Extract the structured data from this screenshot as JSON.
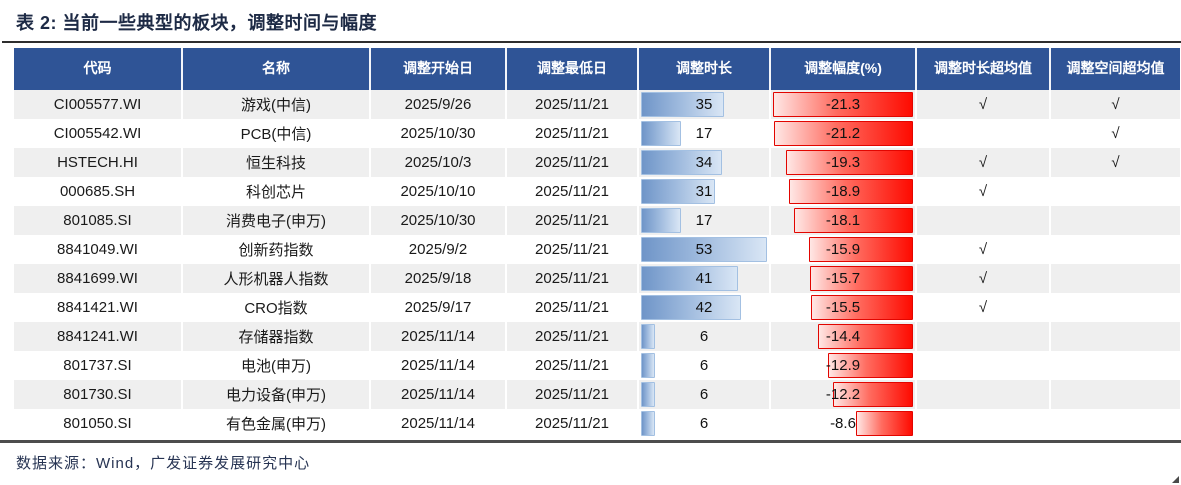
{
  "title": {
    "text": "表 2:  当前一些典型的板块，调整时间与幅度"
  },
  "source": {
    "text": "数据来源：Wind，广发证券发展研究中心"
  },
  "table": {
    "columns": [
      {
        "key": "code",
        "label": "代码"
      },
      {
        "key": "name",
        "label": "名称"
      },
      {
        "key": "start",
        "label": "调整开始日"
      },
      {
        "key": "low",
        "label": "调整最低日"
      },
      {
        "key": "duration",
        "label": "调整时长"
      },
      {
        "key": "drawdown",
        "label": "调整幅度(%)"
      },
      {
        "key": "dur_over",
        "label": "调整时长超均值"
      },
      {
        "key": "space_over",
        "label": "调整空间超均值"
      }
    ],
    "check_glyph": "√",
    "rows": [
      {
        "code": "CI005577.WI",
        "name": "游戏(中信)",
        "start": "2025/9/26",
        "low": "2025/11/21",
        "duration": 35,
        "drawdown": -21.3,
        "duration_over_avg": true,
        "space_over_avg": true
      },
      {
        "code": "CI005542.WI",
        "name": "PCB(中信)",
        "start": "2025/10/30",
        "low": "2025/11/21",
        "duration": 17,
        "drawdown": -21.2,
        "duration_over_avg": false,
        "space_over_avg": true
      },
      {
        "code": "HSTECH.HI",
        "name": "恒生科技",
        "start": "2025/10/3",
        "low": "2025/11/21",
        "duration": 34,
        "drawdown": -19.3,
        "duration_over_avg": true,
        "space_over_avg": true
      },
      {
        "code": "000685.SH",
        "name": "科创芯片",
        "start": "2025/10/10",
        "low": "2025/11/21",
        "duration": 31,
        "drawdown": -18.9,
        "duration_over_avg": true,
        "space_over_avg": false
      },
      {
        "code": "801085.SI",
        "name": "消费电子(申万)",
        "start": "2025/10/30",
        "low": "2025/11/21",
        "duration": 17,
        "drawdown": -18.1,
        "duration_over_avg": false,
        "space_over_avg": false
      },
      {
        "code": "8841049.WI",
        "name": "创新药指数",
        "start": "2025/9/2",
        "low": "2025/11/21",
        "duration": 53,
        "drawdown": -15.9,
        "duration_over_avg": true,
        "space_over_avg": false
      },
      {
        "code": "8841699.WI",
        "name": "人形机器人指数",
        "start": "2025/9/18",
        "low": "2025/11/21",
        "duration": 41,
        "drawdown": -15.7,
        "duration_over_avg": true,
        "space_over_avg": false
      },
      {
        "code": "8841421.WI",
        "name": "CRO指数",
        "start": "2025/9/17",
        "low": "2025/11/21",
        "duration": 42,
        "drawdown": -15.5,
        "duration_over_avg": true,
        "space_over_avg": false
      },
      {
        "code": "8841241.WI",
        "name": "存储器指数",
        "start": "2025/11/14",
        "low": "2025/11/21",
        "duration": 6,
        "drawdown": -14.4,
        "duration_over_avg": false,
        "space_over_avg": false
      },
      {
        "code": "801737.SI",
        "name": "电池(申万)",
        "start": "2025/11/14",
        "low": "2025/11/21",
        "duration": 6,
        "drawdown": -12.9,
        "duration_over_avg": false,
        "space_over_avg": false
      },
      {
        "code": "801730.SI",
        "name": "电力设备(申万)",
        "start": "2025/11/14",
        "low": "2025/11/21",
        "duration": 6,
        "drawdown": -12.2,
        "duration_over_avg": false,
        "space_over_avg": false
      },
      {
        "code": "801050.SI",
        "name": "有色金属(申万)",
        "start": "2025/11/14",
        "low": "2025/11/21",
        "duration": 6,
        "drawdown": -8.6,
        "duration_over_avg": false,
        "space_over_avg": false
      }
    ]
  },
  "colors": {
    "header_bg": "#2f5496",
    "stripe_bg": "#efefef",
    "blue_bar_border": "#a3c0e2",
    "blue_bar_start": "#6f95c8",
    "blue_bar_end": "#d9e6f5",
    "red_bar_border": "#e20500",
    "red_bar_start": "#ffe7e5",
    "red_bar_end": "#fe0b01",
    "title_text": "#1d2a45",
    "source_text": "#273453"
  }
}
